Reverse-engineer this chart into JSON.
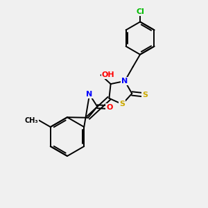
{
  "bg_color": "#f0f0f0",
  "bond_color": "#000000",
  "atom_colors": {
    "N": "#0000ff",
    "O": "#ff0000",
    "S": "#ccaa00",
    "Cl": "#00bb00",
    "C": "#000000",
    "H": "#000000"
  },
  "font_size_atom": 8,
  "line_width": 1.4
}
